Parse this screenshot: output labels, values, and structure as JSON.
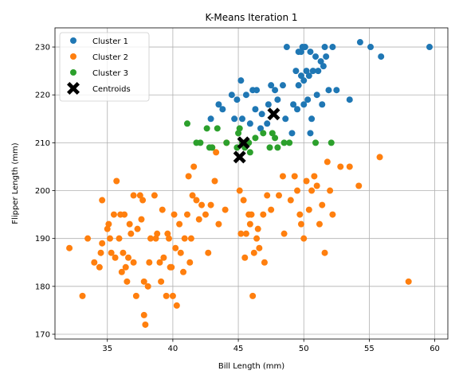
{
  "chart_data": {
    "type": "scatter",
    "title": "K-Means Iteration 1",
    "xlabel": "Bill Length (mm)",
    "ylabel": "Flipper Length (mm)",
    "xlim": [
      31,
      61
    ],
    "ylim": [
      169,
      234
    ],
    "xticks": [
      35,
      40,
      45,
      50,
      55,
      60
    ],
    "yticks": [
      170,
      180,
      190,
      200,
      210,
      220,
      230
    ],
    "grid": true,
    "legend_position": "top-left",
    "series": [
      {
        "name": "Cluster 1",
        "color": "#1f77b4",
        "marker": "circle",
        "points": [
          [
            49.9,
            230
          ],
          [
            50.1,
            230
          ],
          [
            51.6,
            230
          ],
          [
            52.2,
            230
          ],
          [
            54.3,
            231
          ],
          [
            55.1,
            230
          ],
          [
            59.6,
            230
          ],
          [
            55.9,
            228
          ],
          [
            48.7,
            230
          ],
          [
            49.6,
            229
          ],
          [
            49.8,
            229
          ],
          [
            50.5,
            229
          ],
          [
            50.9,
            228
          ],
          [
            51.3,
            227
          ],
          [
            51.7,
            228
          ],
          [
            49.4,
            225
          ],
          [
            49.8,
            224
          ],
          [
            50.2,
            225
          ],
          [
            50.4,
            224
          ],
          [
            50.7,
            225
          ],
          [
            51.1,
            225
          ],
          [
            51.5,
            226
          ],
          [
            50.0,
            223
          ],
          [
            49.6,
            222
          ],
          [
            48.4,
            222
          ],
          [
            47.8,
            221
          ],
          [
            47.5,
            222
          ],
          [
            46.1,
            221
          ],
          [
            46.4,
            221
          ],
          [
            45.2,
            223
          ],
          [
            45.6,
            220
          ],
          [
            44.9,
            219
          ],
          [
            44.5,
            220
          ],
          [
            43.5,
            218
          ],
          [
            43.8,
            217
          ],
          [
            42.9,
            215
          ],
          [
            44.7,
            215
          ],
          [
            45.3,
            215
          ],
          [
            46.3,
            217
          ],
          [
            46.8,
            216
          ],
          [
            47.3,
            218
          ],
          [
            48.0,
            219
          ],
          [
            49.2,
            218
          ],
          [
            49.5,
            217
          ],
          [
            50.0,
            218
          ],
          [
            50.3,
            219
          ],
          [
            51.0,
            220
          ],
          [
            51.4,
            218
          ],
          [
            52.5,
            221
          ],
          [
            53.5,
            219
          ],
          [
            47.2,
            214
          ],
          [
            46.7,
            213
          ],
          [
            45.9,
            214
          ],
          [
            49.1,
            212
          ],
          [
            50.6,
            215
          ],
          [
            50.5,
            212
          ],
          [
            51.9,
            221
          ],
          [
            48.6,
            215
          ]
        ]
      },
      {
        "name": "Cluster 2",
        "color": "#ff7f0e",
        "marker": "circle",
        "points": [
          [
            32.1,
            188
          ],
          [
            33.1,
            178
          ],
          [
            33.5,
            190
          ],
          [
            34.0,
            185
          ],
          [
            34.4,
            184
          ],
          [
            34.5,
            187
          ],
          [
            34.6,
            198
          ],
          [
            34.6,
            189
          ],
          [
            35.0,
            192
          ],
          [
            35.1,
            193
          ],
          [
            35.2,
            190
          ],
          [
            35.3,
            187
          ],
          [
            35.5,
            195
          ],
          [
            35.7,
            202
          ],
          [
            35.9,
            190
          ],
          [
            36.0,
            195
          ],
          [
            36.2,
            187
          ],
          [
            36.3,
            195
          ],
          [
            36.4,
            184
          ],
          [
            36.5,
            181
          ],
          [
            36.6,
            186
          ],
          [
            36.7,
            193
          ],
          [
            36.8,
            191
          ],
          [
            37.0,
            185
          ],
          [
            37.2,
            178
          ],
          [
            37.3,
            192
          ],
          [
            37.5,
            199
          ],
          [
            37.6,
            194
          ],
          [
            37.7,
            198
          ],
          [
            37.8,
            181
          ],
          [
            37.8,
            174
          ],
          [
            37.9,
            172
          ],
          [
            38.1,
            180
          ],
          [
            38.2,
            185
          ],
          [
            38.3,
            190
          ],
          [
            38.6,
            199
          ],
          [
            38.8,
            191
          ],
          [
            39.0,
            185
          ],
          [
            39.1,
            181
          ],
          [
            39.2,
            196
          ],
          [
            39.5,
            178
          ],
          [
            39.6,
            191
          ],
          [
            39.7,
            190
          ],
          [
            39.8,
            184
          ],
          [
            40.1,
            195
          ],
          [
            40.2,
            188
          ],
          [
            40.3,
            176
          ],
          [
            40.5,
            193
          ],
          [
            40.6,
            187
          ],
          [
            40.8,
            183
          ],
          [
            40.9,
            190
          ],
          [
            41.1,
            195
          ],
          [
            41.3,
            185
          ],
          [
            41.4,
            190
          ],
          [
            41.5,
            199
          ],
          [
            41.6,
            205
          ],
          [
            41.8,
            198
          ],
          [
            42.0,
            194
          ],
          [
            42.2,
            197
          ],
          [
            42.5,
            195
          ],
          [
            42.7,
            187
          ],
          [
            42.9,
            197
          ],
          [
            43.2,
            202
          ],
          [
            43.3,
            208
          ],
          [
            43.5,
            193
          ],
          [
            44.0,
            196
          ],
          [
            44.1,
            210
          ],
          [
            45.1,
            200
          ],
          [
            45.2,
            191
          ],
          [
            45.4,
            198
          ],
          [
            45.5,
            186
          ],
          [
            45.6,
            191
          ],
          [
            45.8,
            195
          ],
          [
            45.9,
            193
          ],
          [
            46.0,
            195
          ],
          [
            46.1,
            178
          ],
          [
            46.2,
            187
          ],
          [
            46.4,
            190
          ],
          [
            46.5,
            192
          ],
          [
            46.6,
            188
          ],
          [
            46.9,
            195
          ],
          [
            47.0,
            185
          ],
          [
            47.2,
            199
          ],
          [
            47.5,
            196
          ],
          [
            48.1,
            199
          ],
          [
            48.4,
            203
          ],
          [
            48.5,
            191
          ],
          [
            49.0,
            198
          ],
          [
            49.3,
            203
          ],
          [
            49.5,
            200
          ],
          [
            49.7,
            195
          ],
          [
            49.8,
            193
          ],
          [
            50.0,
            190
          ],
          [
            50.2,
            202
          ],
          [
            50.4,
            196
          ],
          [
            50.6,
            200
          ],
          [
            50.8,
            203
          ],
          [
            51.0,
            201
          ],
          [
            51.2,
            193
          ],
          [
            51.4,
            197
          ],
          [
            51.6,
            187
          ],
          [
            51.8,
            206
          ],
          [
            52.0,
            200
          ],
          [
            52.2,
            195
          ],
          [
            52.8,
            205
          ],
          [
            53.5,
            205
          ],
          [
            54.2,
            201
          ],
          [
            55.8,
            207
          ],
          [
            58.0,
            181
          ],
          [
            37.0,
            199
          ],
          [
            38.7,
            190
          ],
          [
            39.3,
            186
          ],
          [
            40.0,
            178
          ],
          [
            41.2,
            203
          ],
          [
            43.0,
            209
          ],
          [
            36.1,
            183
          ],
          [
            35.6,
            186
          ],
          [
            39.9,
            184
          ]
        ]
      },
      {
        "name": "Cluster 3",
        "color": "#2ca02c",
        "marker": "circle",
        "points": [
          [
            41.1,
            214
          ],
          [
            41.8,
            210
          ],
          [
            42.1,
            210
          ],
          [
            42.6,
            213
          ],
          [
            43.0,
            209
          ],
          [
            43.4,
            213
          ],
          [
            44.1,
            210
          ],
          [
            45.0,
            212
          ],
          [
            45.1,
            213
          ],
          [
            45.3,
            210
          ],
          [
            45.5,
            209
          ],
          [
            45.9,
            208
          ],
          [
            46.3,
            211
          ],
          [
            46.9,
            212
          ],
          [
            47.4,
            209
          ],
          [
            47.8,
            211
          ],
          [
            48.0,
            209
          ],
          [
            48.5,
            210
          ],
          [
            48.9,
            210
          ],
          [
            50.9,
            210
          ],
          [
            52.1,
            210
          ],
          [
            47.6,
            212
          ],
          [
            45.8,
            210
          ],
          [
            44.9,
            209
          ],
          [
            42.8,
            209
          ]
        ]
      },
      {
        "name": "Centroids",
        "color": "#000000",
        "marker": "x",
        "points": [
          [
            47.7,
            216
          ],
          [
            45.4,
            210
          ],
          [
            45.1,
            207
          ]
        ]
      }
    ]
  }
}
